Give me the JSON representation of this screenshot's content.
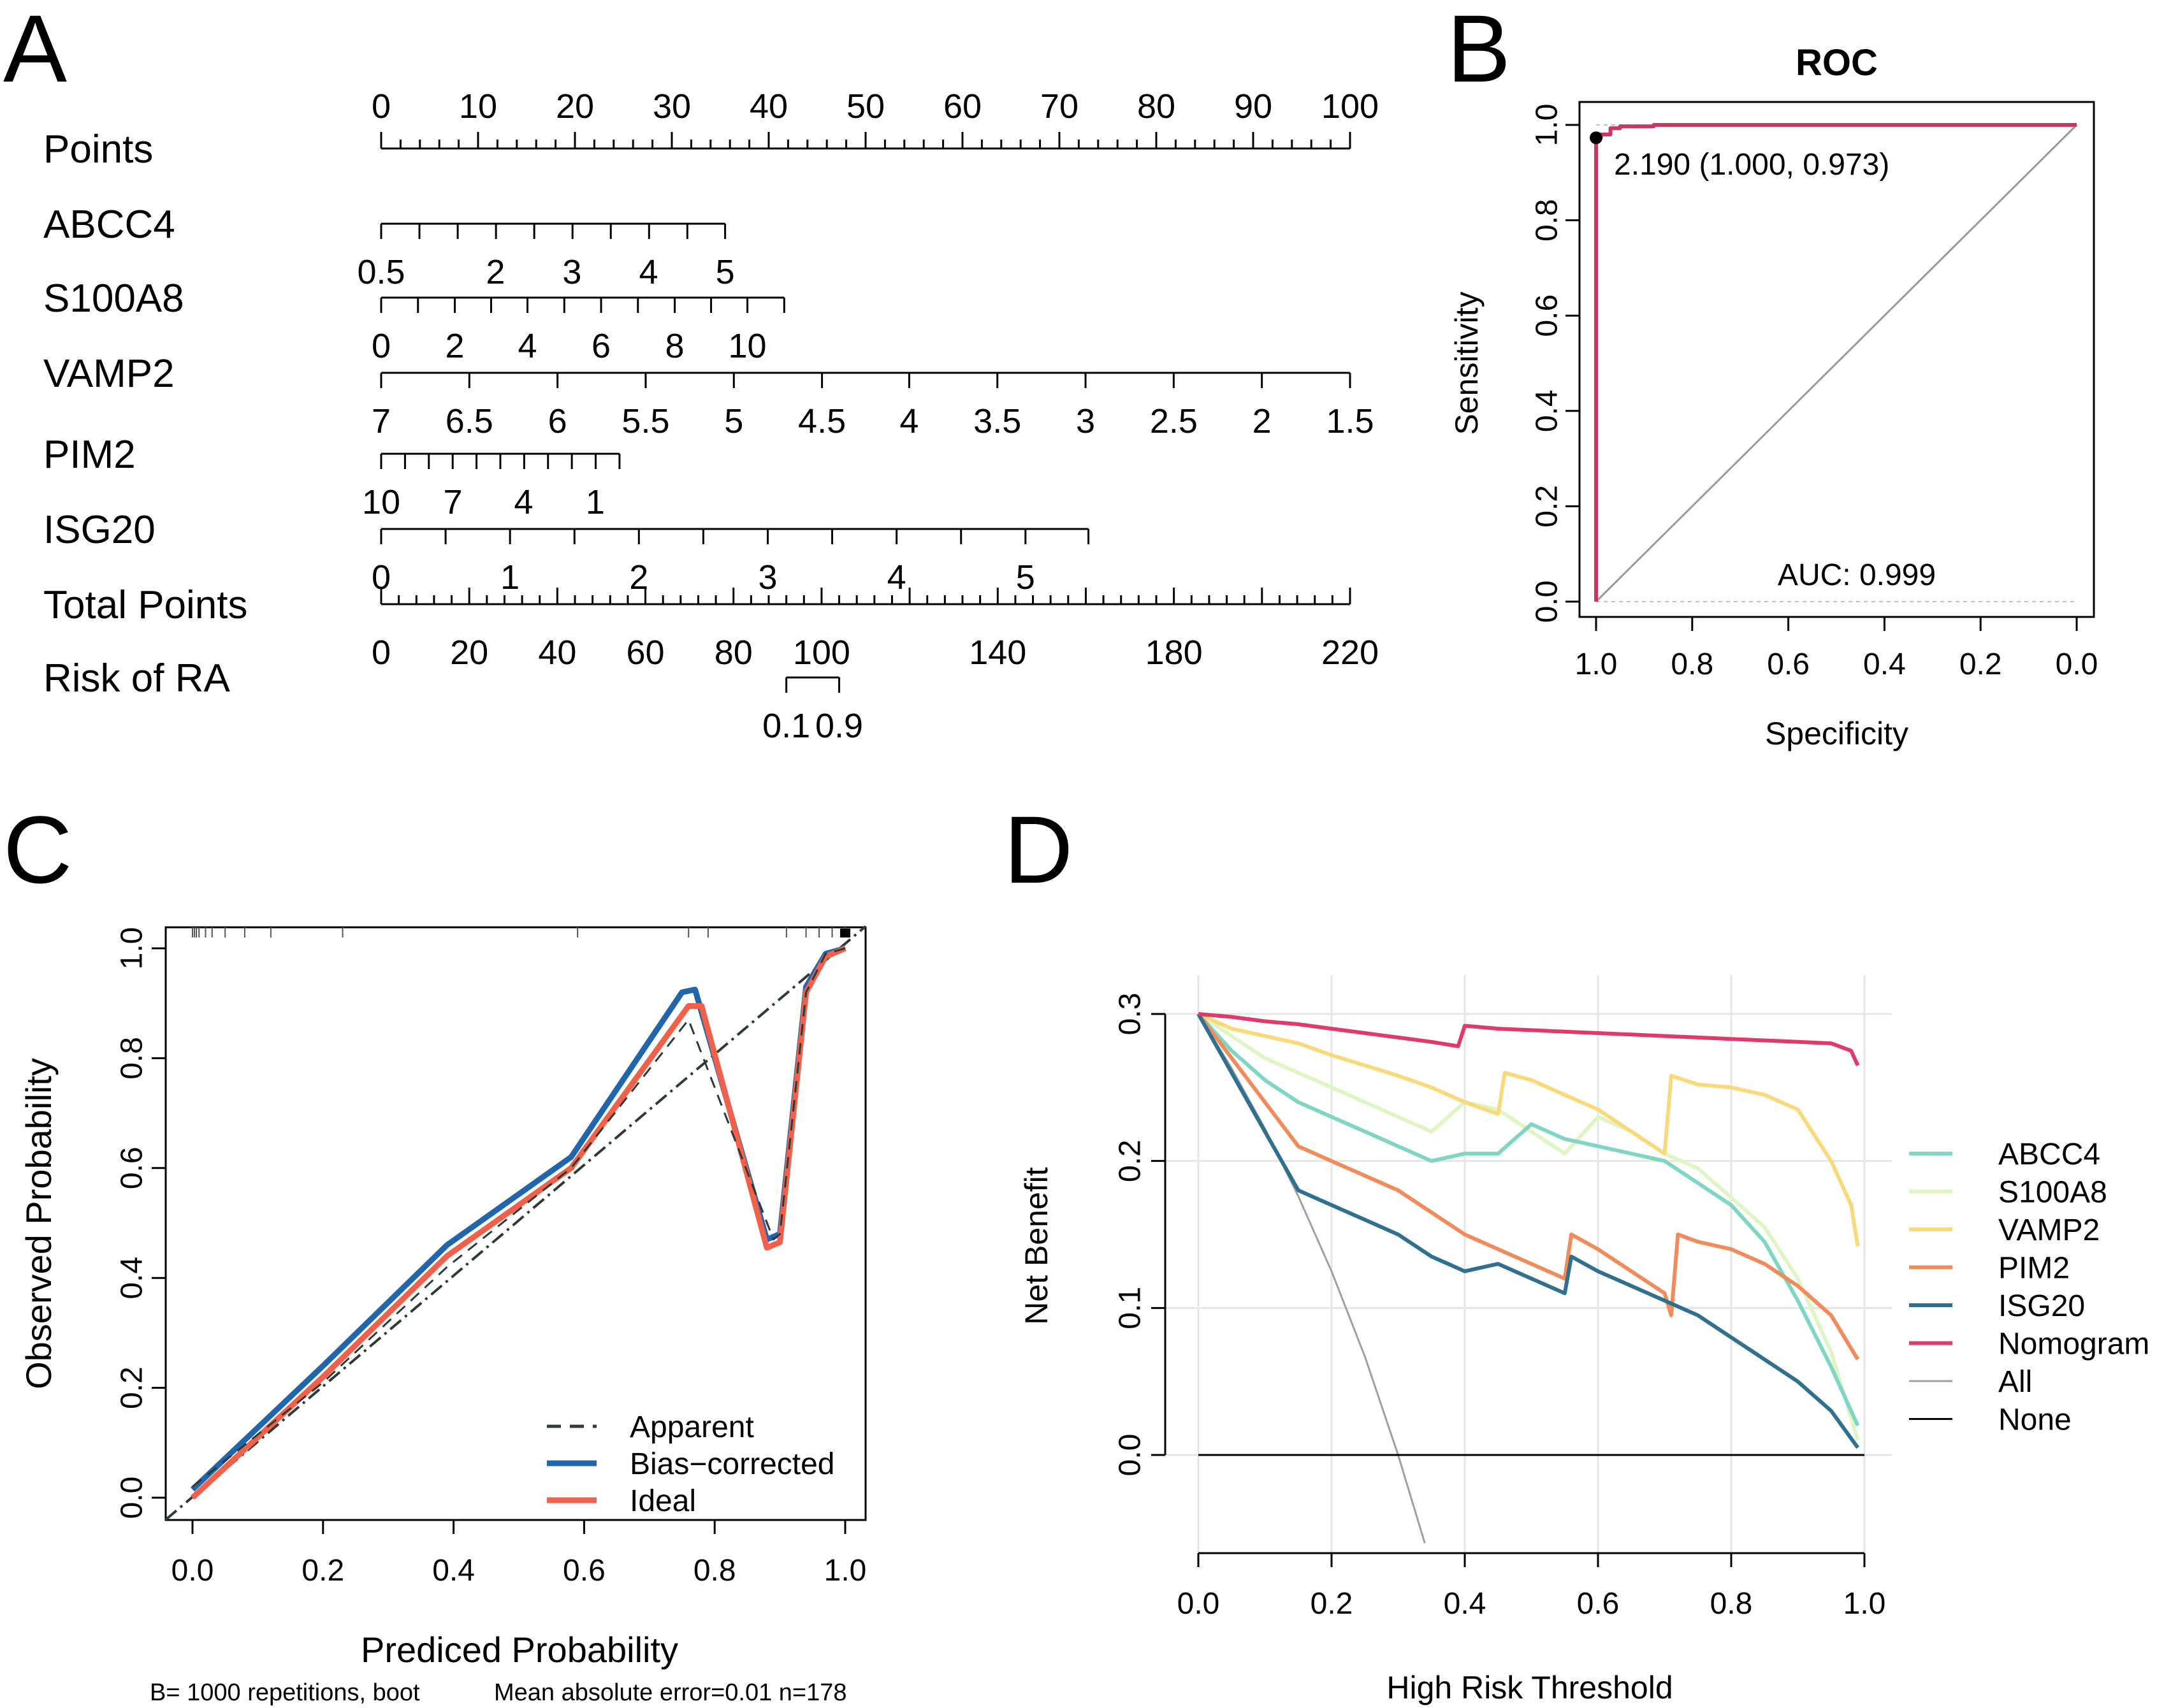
{
  "panel_labels": [
    "A",
    "B",
    "C",
    "D"
  ],
  "chart_data": [
    {
      "type": "nomogram",
      "panel": "A",
      "rows": [
        {
          "label": "Points",
          "min": 0,
          "max": 100,
          "ticks": [
            "0",
            "10",
            "20",
            "30",
            "40",
            "50",
            "60",
            "70",
            "80",
            "90",
            "100"
          ],
          "minor_step": 2
        },
        {
          "label": "ABCC4",
          "from": 0,
          "to": 35.5,
          "ticks": [
            {
              "label": "0.5",
              "pt": 0
            },
            {
              "label": "2",
              "pt": 11.8
            },
            {
              "label": "3",
              "pt": 19.7
            },
            {
              "label": "4",
              "pt": 27.6
            },
            {
              "label": "5",
              "pt": 35.5
            }
          ],
          "minor": [
            0,
            3.95,
            7.9,
            11.85,
            15.8,
            19.75,
            23.7,
            27.65,
            31.6,
            35.5
          ]
        },
        {
          "label": "S100A8",
          "from": 0,
          "to": 41.6,
          "ticks": [
            {
              "label": "0",
              "pt": 0
            },
            {
              "label": "2",
              "pt": 7.6
            },
            {
              "label": "4",
              "pt": 15.1
            },
            {
              "label": "6",
              "pt": 22.7
            },
            {
              "label": "8",
              "pt": 30.3
            },
            {
              "label": "10",
              "pt": 37.8
            }
          ],
          "minor": [
            0,
            3.8,
            7.6,
            11.35,
            15.1,
            18.9,
            22.7,
            26.5,
            30.3,
            34.05,
            37.8,
            41.6
          ]
        },
        {
          "label": "VAMP2",
          "from": 0,
          "to": 100,
          "ticks": [
            {
              "label": "7",
              "pt": 0
            },
            {
              "label": "6.5",
              "pt": 9.1
            },
            {
              "label": "6",
              "pt": 18.2
            },
            {
              "label": "5.5",
              "pt": 27.3
            },
            {
              "label": "5",
              "pt": 36.4
            },
            {
              "label": "4.5",
              "pt": 45.5
            },
            {
              "label": "4",
              "pt": 54.5
            },
            {
              "label": "3.5",
              "pt": 63.6
            },
            {
              "label": "3",
              "pt": 72.7
            },
            {
              "label": "2.5",
              "pt": 81.8
            },
            {
              "label": "2",
              "pt": 90.9
            },
            {
              "label": "1.5",
              "pt": 100
            }
          ],
          "minor": []
        },
        {
          "label": "PIM2",
          "from": 0,
          "to": 24.6,
          "ticks": [
            {
              "label": "10",
              "pt": 0
            },
            {
              "label": "7",
              "pt": 7.4
            },
            {
              "label": "4",
              "pt": 14.7
            },
            {
              "label": "1",
              "pt": 22.1
            }
          ],
          "minor": [
            0,
            2.46,
            4.92,
            7.38,
            9.84,
            12.3,
            14.76,
            17.22,
            19.68,
            22.14,
            24.6
          ]
        },
        {
          "label": "ISG20",
          "from": 0,
          "to": 73,
          "ticks": [
            {
              "label": "0",
              "pt": 0
            },
            {
              "label": "1",
              "pt": 13.3
            },
            {
              "label": "2",
              "pt": 26.6
            },
            {
              "label": "3",
              "pt": 39.9
            },
            {
              "label": "4",
              "pt": 53.2
            },
            {
              "label": "5",
              "pt": 66.5
            }
          ],
          "minor": [
            0,
            6.65,
            13.3,
            19.95,
            26.6,
            33.25,
            39.9,
            46.55,
            53.2,
            59.85,
            66.5,
            73
          ]
        },
        {
          "label": "Total Points",
          "min": 0,
          "max": 220,
          "ticks": [
            "0",
            "20",
            "40",
            "60",
            "80",
            "100",
            "140",
            "180",
            "220"
          ],
          "tick_values": [
            0,
            20,
            40,
            60,
            80,
            100,
            140,
            180,
            220
          ],
          "minor_step": 4
        },
        {
          "label": "Risk of RA",
          "from_total": 92,
          "to_total": 104,
          "ticks": [
            {
              "label": "0.1",
              "total": 92
            },
            {
              "label": "0.9",
              "total": 104
            }
          ]
        }
      ]
    },
    {
      "type": "line",
      "panel": "B",
      "title": "ROC",
      "xlabel": "Specificity",
      "ylabel": "Sensitivity",
      "xlim": [
        1.0,
        0.0
      ],
      "ylim": [
        0.0,
        1.0
      ],
      "xticks": [
        "1.0",
        "0.8",
        "0.6",
        "0.4",
        "0.2",
        "0.0"
      ],
      "yticks": [
        "0.0",
        "0.2",
        "0.4",
        "0.6",
        "0.8",
        "1.0"
      ],
      "roc_curve": {
        "specificity": [
          1.0,
          1.0,
          0.99,
          0.99,
          0.97,
          0.97,
          0.95,
          0.95,
          0.88,
          0.88,
          0.0
        ],
        "sensitivity": [
          0.0,
          0.973,
          0.973,
          0.98,
          0.98,
          0.993,
          0.993,
          0.997,
          0.997,
          1.0,
          1.0
        ]
      },
      "best_point": {
        "specificity": 1.0,
        "sensitivity": 0.973,
        "label": "2.190 (1.000, 0.973)"
      },
      "auc_label": "AUC: 0.999"
    },
    {
      "type": "line",
      "panel": "C",
      "xlabel": "Prediced Probability",
      "ylabel": "Observed Probability",
      "xlim": [
        -0.04,
        1.04
      ],
      "ylim": [
        -0.04,
        1.04
      ],
      "xticks": [
        "0.0",
        "0.2",
        "0.4",
        "0.6",
        "0.8",
        "1.0"
      ],
      "yticks": [
        "0.0",
        "0.2",
        "0.4",
        "0.6",
        "0.8",
        "1.0"
      ],
      "series": [
        {
          "name": "Apparent",
          "color": "#2d3a36",
          "dash": true,
          "x": [
            0.0,
            0.2,
            0.39,
            0.58,
            0.76,
            0.89,
            0.9,
            0.94,
            0.97,
            1.0
          ],
          "y": [
            0.02,
            0.21,
            0.42,
            0.6,
            0.87,
            0.47,
            0.48,
            0.92,
            0.99,
            1.0
          ]
        },
        {
          "name": "Bias−corrected",
          "color": "#2166ac",
          "x": [
            0.0,
            0.2,
            0.39,
            0.58,
            0.75,
            0.77,
            0.88,
            0.9,
            0.94,
            0.97,
            1.0
          ],
          "y": [
            0.015,
            0.24,
            0.46,
            0.62,
            0.92,
            0.925,
            0.47,
            0.48,
            0.93,
            0.99,
            1.0
          ]
        },
        {
          "name": "Ideal",
          "color": "#f0604a",
          "x": [
            0.0,
            0.2,
            0.39,
            0.58,
            0.76,
            0.78,
            0.88,
            0.9,
            0.94,
            0.97,
            1.0
          ],
          "y": [
            0.0,
            0.22,
            0.44,
            0.6,
            0.895,
            0.895,
            0.455,
            0.465,
            0.92,
            0.985,
            1.0
          ]
        }
      ],
      "diagonal": true,
      "rug": [
        0.0,
        0.003,
        0.006,
        0.01,
        0.02,
        0.03,
        0.05,
        0.08,
        0.12,
        0.23,
        0.59,
        0.76,
        0.79,
        0.91,
        0.94,
        0.96,
        0.98,
        1.0
      ],
      "footnote_left": "B= 1000 repetitions, boot",
      "footnote_right": "Mean absolute error=0.01 n=178"
    },
    {
      "type": "line",
      "panel": "D",
      "xlabel": "High Risk Threshold",
      "ylabel": "Net Benefit",
      "xlim": [
        0.0,
        1.0
      ],
      "ylim": [
        -0.07,
        0.32
      ],
      "xticks": [
        "0.0",
        "0.2",
        "0.4",
        "0.6",
        "0.8",
        "1.0"
      ],
      "yticks": [
        "0.0",
        "0.1",
        "0.2",
        "0.3"
      ],
      "series": [
        {
          "name": "ABCC4",
          "color": "#7fd6c4",
          "x": [
            0,
            0.05,
            0.1,
            0.15,
            0.2,
            0.25,
            0.3,
            0.35,
            0.4,
            0.45,
            0.5,
            0.55,
            0.6,
            0.65,
            0.7,
            0.75,
            0.8,
            0.85,
            0.9,
            0.95,
            0.99
          ],
          "y": [
            0.3,
            0.275,
            0.255,
            0.24,
            0.23,
            0.22,
            0.21,
            0.2,
            0.205,
            0.205,
            0.225,
            0.215,
            0.21,
            0.205,
            0.2,
            0.185,
            0.17,
            0.145,
            0.105,
            0.06,
            0.02
          ]
        },
        {
          "name": "S100A8",
          "color": "#e0f5c4",
          "x": [
            0,
            0.05,
            0.1,
            0.15,
            0.2,
            0.25,
            0.3,
            0.35,
            0.4,
            0.45,
            0.5,
            0.55,
            0.6,
            0.65,
            0.7,
            0.75,
            0.8,
            0.85,
            0.9,
            0.95,
            0.99
          ],
          "y": [
            0.3,
            0.285,
            0.27,
            0.26,
            0.25,
            0.24,
            0.23,
            0.22,
            0.24,
            0.235,
            0.22,
            0.205,
            0.23,
            0.22,
            0.205,
            0.195,
            0.175,
            0.155,
            0.12,
            0.07,
            0.01
          ]
        },
        {
          "name": "VAMP2",
          "color": "#fad97a",
          "x": [
            0,
            0.05,
            0.1,
            0.15,
            0.2,
            0.25,
            0.3,
            0.35,
            0.4,
            0.45,
            0.46,
            0.5,
            0.55,
            0.6,
            0.65,
            0.7,
            0.71,
            0.75,
            0.8,
            0.85,
            0.9,
            0.95,
            0.98,
            0.99
          ],
          "y": [
            0.3,
            0.29,
            0.285,
            0.28,
            0.272,
            0.265,
            0.258,
            0.25,
            0.24,
            0.232,
            0.26,
            0.255,
            0.245,
            0.235,
            0.22,
            0.205,
            0.258,
            0.252,
            0.25,
            0.245,
            0.235,
            0.2,
            0.17,
            0.142
          ]
        },
        {
          "name": "PIM2",
          "color": "#f08b5c",
          "x": [
            0,
            0.05,
            0.1,
            0.15,
            0.2,
            0.25,
            0.3,
            0.35,
            0.4,
            0.45,
            0.5,
            0.55,
            0.56,
            0.6,
            0.65,
            0.7,
            0.71,
            0.72,
            0.75,
            0.8,
            0.85,
            0.9,
            0.95,
            0.99
          ],
          "y": [
            0.3,
            0.27,
            0.24,
            0.21,
            0.2,
            0.19,
            0.18,
            0.165,
            0.15,
            0.14,
            0.13,
            0.12,
            0.15,
            0.14,
            0.125,
            0.11,
            0.095,
            0.15,
            0.145,
            0.14,
            0.13,
            0.115,
            0.095,
            0.065
          ]
        },
        {
          "name": "ISG20",
          "color": "#2f6f8f",
          "x": [
            0,
            0.05,
            0.1,
            0.15,
            0.2,
            0.25,
            0.3,
            0.35,
            0.4,
            0.45,
            0.5,
            0.55,
            0.56,
            0.6,
            0.65,
            0.7,
            0.75,
            0.8,
            0.85,
            0.9,
            0.95,
            0.99
          ],
          "y": [
            0.3,
            0.26,
            0.22,
            0.18,
            0.17,
            0.16,
            0.15,
            0.135,
            0.125,
            0.13,
            0.12,
            0.11,
            0.135,
            0.125,
            0.115,
            0.105,
            0.095,
            0.08,
            0.065,
            0.05,
            0.03,
            0.005
          ]
        },
        {
          "name": "Nomogram",
          "color": "#e03a6a",
          "x": [
            0,
            0.05,
            0.1,
            0.15,
            0.2,
            0.25,
            0.3,
            0.35,
            0.39,
            0.4,
            0.45,
            0.5,
            0.55,
            0.6,
            0.65,
            0.7,
            0.75,
            0.8,
            0.85,
            0.9,
            0.95,
            0.98,
            0.99
          ],
          "y": [
            0.3,
            0.298,
            0.295,
            0.293,
            0.29,
            0.287,
            0.284,
            0.281,
            0.278,
            0.292,
            0.29,
            0.289,
            0.288,
            0.287,
            0.286,
            0.285,
            0.284,
            0.283,
            0.282,
            0.281,
            0.28,
            0.275,
            0.265
          ]
        },
        {
          "name": "All",
          "color": "#a0a0a0",
          "x": [
            0,
            0.05,
            0.1,
            0.15,
            0.2,
            0.25,
            0.3,
            0.34
          ],
          "y": [
            0.3,
            0.263,
            0.222,
            0.176,
            0.125,
            0.067,
            0.0,
            -0.06
          ]
        },
        {
          "name": "None",
          "color": "#000000",
          "x": [
            0,
            1.0
          ],
          "y": [
            0,
            0
          ]
        }
      ]
    }
  ]
}
